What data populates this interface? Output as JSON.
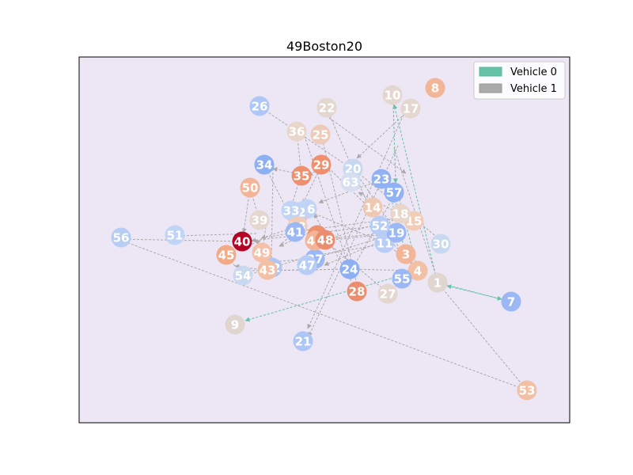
{
  "title": "49Boston20",
  "legend": [
    {
      "label": "Vehicle 0",
      "color": "#66c2a5"
    },
    {
      "label": "Vehicle 1",
      "color": "#aaaaaa"
    }
  ],
  "colors": {
    "plot_background": "#ece6f5",
    "depot": "#b40426"
  },
  "nodes": [
    {
      "id": "1",
      "color": "#e0d5cf"
    },
    {
      "id": "3",
      "color": "#f2b597"
    },
    {
      "id": "4",
      "color": "#f2c0a4"
    },
    {
      "id": "7",
      "color": "#9bb8f5"
    },
    {
      "id": "8",
      "color": "#f2b597"
    },
    {
      "id": "9",
      "color": "#e0d5cf"
    },
    {
      "id": "10",
      "color": "#e3d7d0"
    },
    {
      "id": "11",
      "color": "#b8cdf5"
    },
    {
      "id": "14",
      "color": "#efc8b2"
    },
    {
      "id": "15",
      "color": "#f1cdb8"
    },
    {
      "id": "16",
      "color": "#c2d4f5"
    },
    {
      "id": "17",
      "color": "#e3d7d0"
    },
    {
      "id": "18",
      "color": "#e8d6cb"
    },
    {
      "id": "19",
      "color": "#9bb8f5"
    },
    {
      "id": "20",
      "color": "#c8d8ef"
    },
    {
      "id": "21",
      "color": "#aec6f5"
    },
    {
      "id": "22",
      "color": "#e3d7d0"
    },
    {
      "id": "23",
      "color": "#90b2f5"
    },
    {
      "id": "24",
      "color": "#8db0f3"
    },
    {
      "id": "25",
      "color": "#edcbb8"
    },
    {
      "id": "26",
      "color": "#afc7f6"
    },
    {
      "id": "27",
      "color": "#e3d7d0"
    },
    {
      "id": "28",
      "color": "#eb8e6f"
    },
    {
      "id": "29",
      "color": "#ee8f6e"
    },
    {
      "id": "30",
      "color": "#c8d8ef"
    },
    {
      "id": "31",
      "color": "#f7c4aa"
    },
    {
      "id": "32",
      "color": "#c2d4f5"
    },
    {
      "id": "33",
      "color": "#c2d4f5"
    },
    {
      "id": "34",
      "color": "#8db0f3"
    },
    {
      "id": "35",
      "color": "#ee8f6e"
    },
    {
      "id": "36",
      "color": "#e8d6cb"
    },
    {
      "id": "37",
      "color": "#9bb8f5"
    },
    {
      "id": "38",
      "color": "#f1cdb8"
    },
    {
      "id": "39",
      "color": "#e3d7d0"
    },
    {
      "id": "40",
      "color": "#b40426"
    },
    {
      "id": "41",
      "color": "#9bb8f5"
    },
    {
      "id": "42",
      "color": "#aec6f5"
    },
    {
      "id": "43",
      "color": "#f2c0a4"
    },
    {
      "id": "44",
      "color": "#ee8f6e"
    },
    {
      "id": "45",
      "color": "#f2aa87"
    },
    {
      "id": "46",
      "color": "#f2b597"
    },
    {
      "id": "47",
      "color": "#b8cdf5"
    },
    {
      "id": "48",
      "color": "#eb8e6f"
    },
    {
      "id": "49",
      "color": "#f5c0a5"
    },
    {
      "id": "50",
      "color": "#f2b597"
    },
    {
      "id": "51",
      "color": "#c2d4f5"
    },
    {
      "id": "52",
      "color": "#b8cdf5"
    },
    {
      "id": "54",
      "color": "#c8d8ef"
    },
    {
      "id": "55",
      "color": "#9bb8f5"
    },
    {
      "id": "56",
      "color": "#b8cdf5"
    },
    {
      "id": "57",
      "color": "#90b2f5"
    },
    {
      "id": "63",
      "color": "#d5dff0"
    },
    {
      "id": "53",
      "color": "#f2c0a4"
    }
  ]
}
